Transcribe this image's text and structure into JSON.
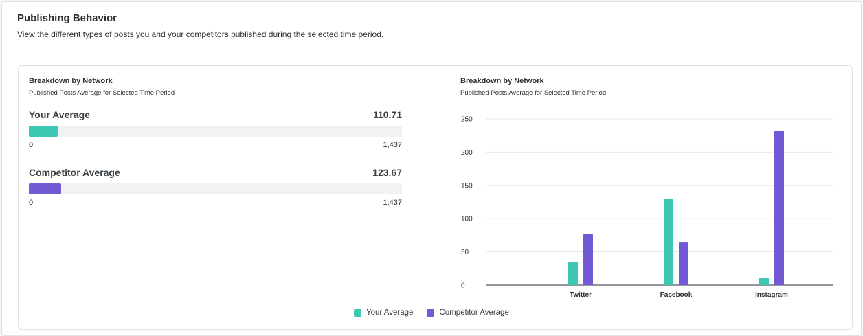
{
  "header": {
    "title": "Publishing Behavior",
    "subtitle": "View the different types of posts you and your competitors published during the selected time period."
  },
  "left_panel": {
    "title": "Breakdown by Network",
    "subtitle": "Published Posts Average for Selected Time Period",
    "metrics": [
      {
        "label": "Your Average",
        "value": "110.71",
        "min": "0",
        "max": "1,437",
        "fraction": 0.077,
        "color": "#3cc8b2"
      },
      {
        "label": "Competitor Average",
        "value": "123.67",
        "min": "0",
        "max": "1,437",
        "fraction": 0.086,
        "color": "#7259d6"
      }
    ]
  },
  "right_panel": {
    "title": "Breakdown by Network",
    "subtitle": "Published Posts Average for Selected Time Period"
  },
  "chart_data": {
    "type": "bar",
    "categories": [
      "Twitter",
      "Facebook",
      "Instagram"
    ],
    "series": [
      {
        "name": "Your Average",
        "values": [
          35,
          130,
          11
        ],
        "color": "#3cc8b2"
      },
      {
        "name": "Competitor Average",
        "values": [
          77,
          65,
          232
        ],
        "color": "#7259d6"
      }
    ],
    "yticks": [
      0,
      50,
      100,
      150,
      200,
      250
    ],
    "ylim": [
      0,
      250
    ],
    "legend_position": "bottom-center"
  },
  "legend": [
    {
      "label": "Your Average",
      "color": "#3cc8b2"
    },
    {
      "label": "Competitor Average",
      "color": "#7259d6"
    }
  ]
}
